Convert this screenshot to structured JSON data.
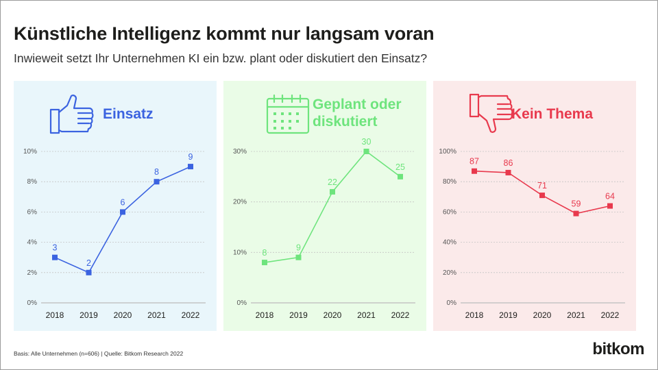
{
  "title": "Künstliche Intelligenz kommt nur langsam voran",
  "subtitle": "Inwieweit setzt Ihr Unternehmen KI ein bzw. plant oder diskutiert den Einsatz?",
  "footnote": "Basis: Alle Unternehmen (n=606) | Quelle: Bitkom Research 2022",
  "brand": "bitkom",
  "panels": [
    {
      "label_line1": "Einsatz",
      "label_line2": "",
      "icon": "thumbs-up-icon",
      "color": "#3b63e0",
      "bg": "#e9f6fb"
    },
    {
      "label_line1": "Geplant oder",
      "label_line2": "diskutiert",
      "icon": "calendar-icon",
      "color": "#6ee47d",
      "bg": "#eafce7"
    },
    {
      "label_line1": "Kein Thema",
      "label_line2": "",
      "icon": "thumbs-down-icon",
      "color": "#e8394d",
      "bg": "#fbeaea"
    }
  ],
  "chart_data": [
    {
      "type": "line",
      "name": "Einsatz",
      "x": [
        "2018",
        "2019",
        "2020",
        "2021",
        "2022"
      ],
      "values": [
        3,
        2,
        6,
        8,
        9
      ],
      "ylim": [
        0,
        10
      ],
      "yticks": [
        0,
        2,
        4,
        6,
        8,
        10
      ],
      "tick_labels": [
        "0%",
        "2%",
        "4%",
        "6%",
        "8%",
        "10%"
      ],
      "color": "#3b63e0"
    },
    {
      "type": "line",
      "name": "Geplant oder diskutiert",
      "x": [
        "2018",
        "2019",
        "2020",
        "2021",
        "2022"
      ],
      "values": [
        8,
        9,
        22,
        30,
        25
      ],
      "ylim": [
        0,
        30
      ],
      "yticks": [
        0,
        10,
        20,
        30
      ],
      "tick_labels": [
        "0%",
        "10%",
        "20%",
        "30%"
      ],
      "color": "#6ee47d"
    },
    {
      "type": "line",
      "name": "Kein Thema",
      "x": [
        "2018",
        "2019",
        "2020",
        "2021",
        "2022"
      ],
      "values": [
        87,
        86,
        71,
        59,
        64
      ],
      "ylim": [
        0,
        100
      ],
      "yticks": [
        0,
        20,
        40,
        60,
        80,
        100
      ],
      "tick_labels": [
        "0%",
        "20%",
        "40%",
        "60%",
        "80%",
        "100%"
      ],
      "color": "#e8394d"
    }
  ]
}
